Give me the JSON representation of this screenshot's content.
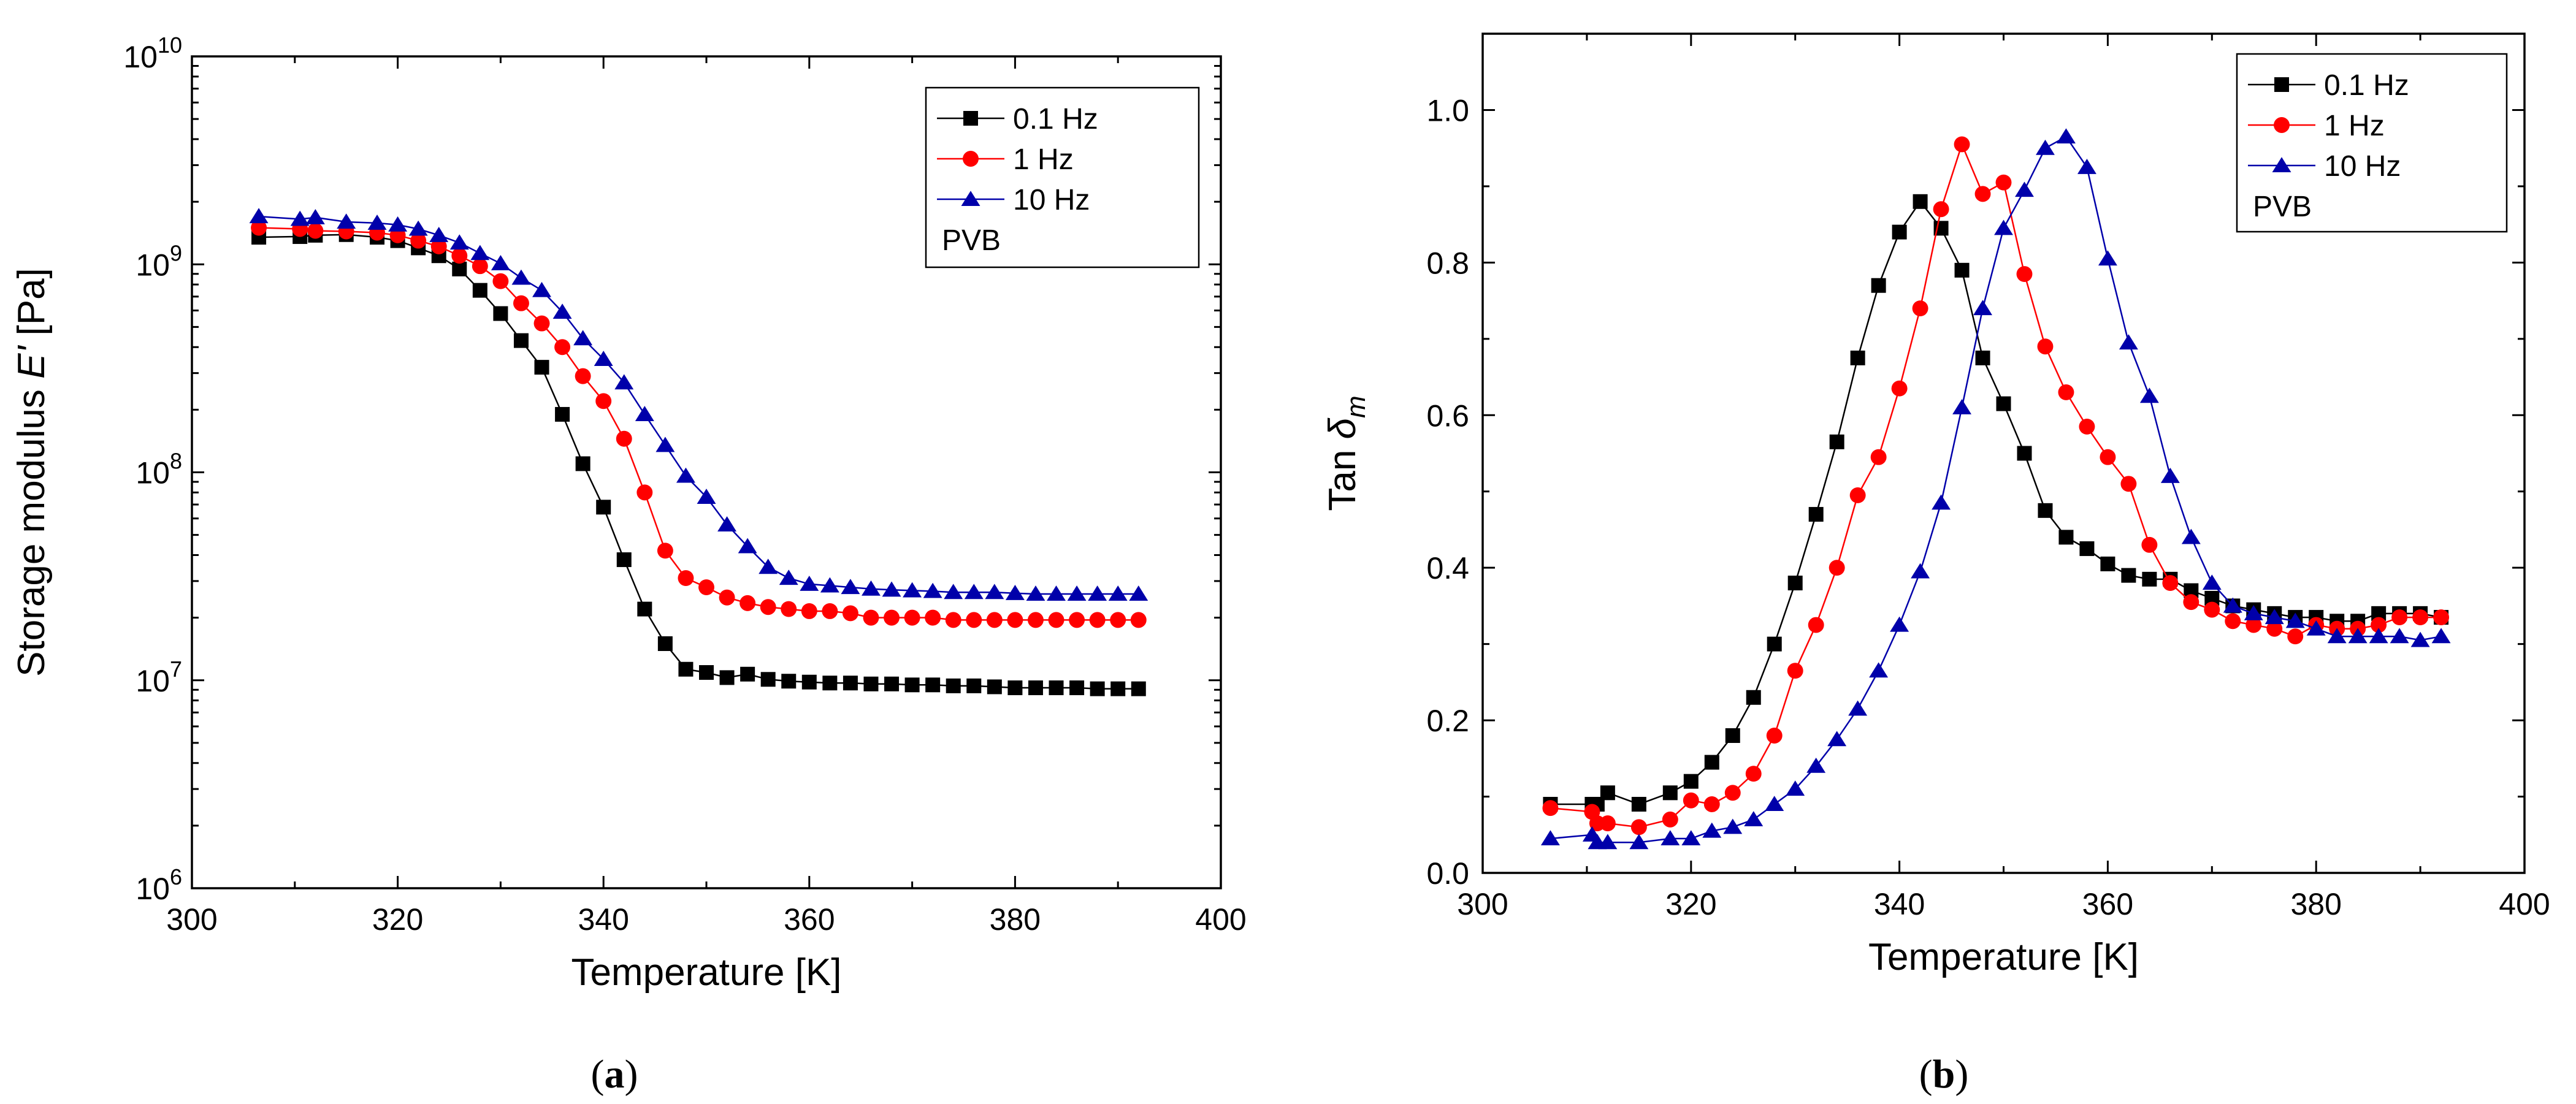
{
  "figure": {
    "panels": [
      {
        "prefix": "(",
        "letter": "a",
        "suffix": ")"
      },
      {
        "prefix": "(",
        "letter": "b",
        "suffix": ")"
      }
    ]
  },
  "chart_data": [
    {
      "type": "scatter",
      "title": "",
      "xlabel": "Temperature [K]",
      "ylabel": {
        "prefix": "Storage modulus ",
        "symbol": "E'",
        "suffix": " [Pa]"
      },
      "yscale": "log",
      "xlim": [
        300,
        400
      ],
      "ylim": [
        1000000,
        10000000000
      ],
      "xticks": [
        300,
        320,
        340,
        360,
        380,
        400
      ],
      "yticks": [
        {
          "base": "10",
          "exp": "6",
          "value": 1000000
        },
        {
          "base": "10",
          "exp": "7",
          "value": 10000000
        },
        {
          "base": "10",
          "exp": "8",
          "value": 100000000
        },
        {
          "base": "10",
          "exp": "9",
          "value": 1000000000
        },
        {
          "base": "10",
          "exp": "10",
          "value": 10000000000
        }
      ],
      "legend": {
        "position": "top-right",
        "note": "PVB"
      },
      "series": [
        {
          "name": "0.1 Hz",
          "marker": "square",
          "color": "#000000",
          "x": [
            306.5,
            310.5,
            312,
            315,
            318,
            320,
            322,
            324,
            326,
            328,
            330,
            332,
            334,
            336,
            338,
            340,
            342,
            344,
            346,
            348,
            350,
            352,
            354,
            356,
            358,
            360,
            362,
            364,
            366,
            368,
            370,
            372,
            374,
            376,
            378,
            380,
            382,
            384,
            386,
            388,
            390,
            392
          ],
          "y": [
            1350000000.0,
            1360000000.0,
            1380000000.0,
            1390000000.0,
            1350000000.0,
            1300000000.0,
            1200000000.0,
            1100000000.0,
            950000000.0,
            750000000.0,
            580000000.0,
            430000000.0,
            320000000.0,
            190000000.0,
            110000000.0,
            68000000.0,
            38000000.0,
            22000000.0,
            15000000.0,
            11300000.0,
            10900000.0,
            10300000.0,
            10700000.0,
            10100000.0,
            9900000.0,
            9800000.0,
            9700000.0,
            9700000.0,
            9600000.0,
            9600000.0,
            9500000.0,
            9500000.0,
            9400000.0,
            9400000.0,
            9300000.0,
            9200000.0,
            9200000.0,
            9200000.0,
            9200000.0,
            9100000.0,
            9100000.0,
            9100000.0
          ]
        },
        {
          "name": "1 Hz",
          "marker": "circle",
          "color": "#ff0000",
          "x": [
            306.5,
            310.5,
            312,
            315,
            318,
            320,
            322,
            324,
            326,
            328,
            330,
            332,
            334,
            336,
            338,
            340,
            342,
            344,
            346,
            348,
            350,
            352,
            354,
            356,
            358,
            360,
            362,
            364,
            366,
            368,
            370,
            372,
            374,
            376,
            378,
            380,
            382,
            384,
            386,
            388,
            390,
            392
          ],
          "y": [
            1500000000.0,
            1480000000.0,
            1450000000.0,
            1440000000.0,
            1420000000.0,
            1380000000.0,
            1300000000.0,
            1220000000.0,
            1100000000.0,
            980000000.0,
            830000000.0,
            650000000.0,
            520000000.0,
            400000000.0,
            290000000.0,
            220000000.0,
            145000000.0,
            80000000.0,
            42000000.0,
            31000000.0,
            28000000.0,
            25000000.0,
            23500000.0,
            22500000.0,
            22000000.0,
            21500000.0,
            21500000.0,
            21000000.0,
            20000000.0,
            20000000.0,
            20000000.0,
            20000000.0,
            19500000.0,
            19500000.0,
            19500000.0,
            19500000.0,
            19500000.0,
            19500000.0,
            19500000.0,
            19500000.0,
            19500000.0,
            19500000.0
          ]
        },
        {
          "name": "10 Hz",
          "marker": "triangle",
          "color": "#0000aa",
          "x": [
            306.5,
            310.5,
            312,
            315,
            318,
            320,
            322,
            324,
            326,
            328,
            330,
            332,
            334,
            336,
            338,
            340,
            342,
            344,
            346,
            348,
            350,
            352,
            354,
            356,
            358,
            360,
            362,
            364,
            366,
            368,
            370,
            372,
            374,
            376,
            378,
            380,
            382,
            384,
            386,
            388,
            390,
            392
          ],
          "y": [
            1700000000.0,
            1650000000.0,
            1680000000.0,
            1600000000.0,
            1580000000.0,
            1550000000.0,
            1480000000.0,
            1380000000.0,
            1270000000.0,
            1130000000.0,
            1010000000.0,
            860000000.0,
            750000000.0,
            590000000.0,
            440000000.0,
            350000000.0,
            270000000.0,
            190000000.0,
            135000000.0,
            96000000.0,
            76000000.0,
            56000000.0,
            44000000.0,
            35000000.0,
            31000000.0,
            29000000.0,
            28500000.0,
            28000000.0,
            27500000.0,
            27200000.0,
            27000000.0,
            26800000.0,
            26500000.0,
            26500000.0,
            26500000.0,
            26200000.0,
            26000000.0,
            26000000.0,
            26000000.0,
            26000000.0,
            26000000.0,
            26000000.0
          ]
        }
      ]
    },
    {
      "type": "scatter",
      "title": "",
      "xlabel": "Temperature [K]",
      "ylabel": {
        "prefix": "Tan ",
        "symbol": "δ",
        "sub": "m"
      },
      "yscale": "linear",
      "xlim": [
        300,
        400
      ],
      "ylim": [
        0,
        1.1
      ],
      "xticks": [
        300,
        320,
        340,
        360,
        380,
        400
      ],
      "yticks": [
        {
          "text": "0.0",
          "value": 0
        },
        {
          "text": "0.2",
          "value": 0.2
        },
        {
          "text": "0.4",
          "value": 0.4
        },
        {
          "text": "0.6",
          "value": 0.6
        },
        {
          "text": "0.8",
          "value": 0.8
        },
        {
          "text": "1.0",
          "value": 1.0
        }
      ],
      "legend": {
        "position": "top-right",
        "note": "PVB"
      },
      "series": [
        {
          "name": "0.1 Hz",
          "marker": "square",
          "color": "#000000",
          "x": [
            306.5,
            310.5,
            311,
            312,
            315,
            318,
            320,
            322,
            324,
            326,
            328,
            330,
            332,
            334,
            336,
            338,
            340,
            342,
            344,
            346,
            348,
            350,
            352,
            354,
            356,
            358,
            360,
            362,
            364,
            366,
            368,
            370,
            372,
            374,
            376,
            378,
            380,
            382,
            384,
            386,
            388,
            390,
            392
          ],
          "y": [
            0.09,
            0.09,
            0.09,
            0.105,
            0.09,
            0.105,
            0.12,
            0.145,
            0.18,
            0.23,
            0.3,
            0.38,
            0.47,
            0.565,
            0.675,
            0.77,
            0.84,
            0.88,
            0.845,
            0.79,
            0.675,
            0.615,
            0.55,
            0.475,
            0.44,
            0.425,
            0.405,
            0.39,
            0.385,
            0.385,
            0.37,
            0.36,
            0.35,
            0.345,
            0.34,
            0.335,
            0.335,
            0.33,
            0.33,
            0.34,
            0.34,
            0.34,
            0.335
          ]
        },
        {
          "name": "1 Hz",
          "marker": "circle",
          "color": "#ff0000",
          "x": [
            306.5,
            310.5,
            311,
            312,
            315,
            318,
            320,
            322,
            324,
            326,
            328,
            330,
            332,
            334,
            336,
            338,
            340,
            342,
            344,
            346,
            348,
            350,
            352,
            354,
            356,
            358,
            360,
            362,
            364,
            366,
            368,
            370,
            372,
            374,
            376,
            378,
            380,
            382,
            384,
            386,
            388,
            390,
            392
          ],
          "y": [
            0.085,
            0.08,
            0.065,
            0.065,
            0.06,
            0.07,
            0.095,
            0.09,
            0.105,
            0.13,
            0.18,
            0.265,
            0.325,
            0.4,
            0.495,
            0.545,
            0.635,
            0.74,
            0.87,
            0.955,
            0.89,
            0.905,
            0.785,
            0.69,
            0.63,
            0.585,
            0.545,
            0.51,
            0.43,
            0.38,
            0.355,
            0.345,
            0.33,
            0.325,
            0.32,
            0.31,
            0.325,
            0.32,
            0.32,
            0.325,
            0.335,
            0.335,
            0.335
          ]
        },
        {
          "name": "10 Hz",
          "marker": "triangle",
          "color": "#0000aa",
          "x": [
            306.5,
            310.5,
            311,
            312,
            315,
            318,
            320,
            322,
            324,
            326,
            328,
            330,
            332,
            334,
            336,
            338,
            340,
            342,
            344,
            346,
            348,
            350,
            352,
            354,
            356,
            358,
            360,
            362,
            364,
            366,
            368,
            370,
            372,
            374,
            376,
            378,
            380,
            382,
            384,
            386,
            388,
            390,
            392
          ],
          "y": [
            0.045,
            0.05,
            0.04,
            0.04,
            0.04,
            0.045,
            0.045,
            0.055,
            0.06,
            0.07,
            0.09,
            0.11,
            0.14,
            0.175,
            0.215,
            0.265,
            0.325,
            0.395,
            0.485,
            0.61,
            0.74,
            0.845,
            0.895,
            0.95,
            0.965,
            0.925,
            0.805,
            0.695,
            0.625,
            0.52,
            0.44,
            0.38,
            0.35,
            0.34,
            0.335,
            0.33,
            0.32,
            0.31,
            0.31,
            0.31,
            0.31,
            0.305,
            0.31
          ]
        }
      ]
    }
  ]
}
